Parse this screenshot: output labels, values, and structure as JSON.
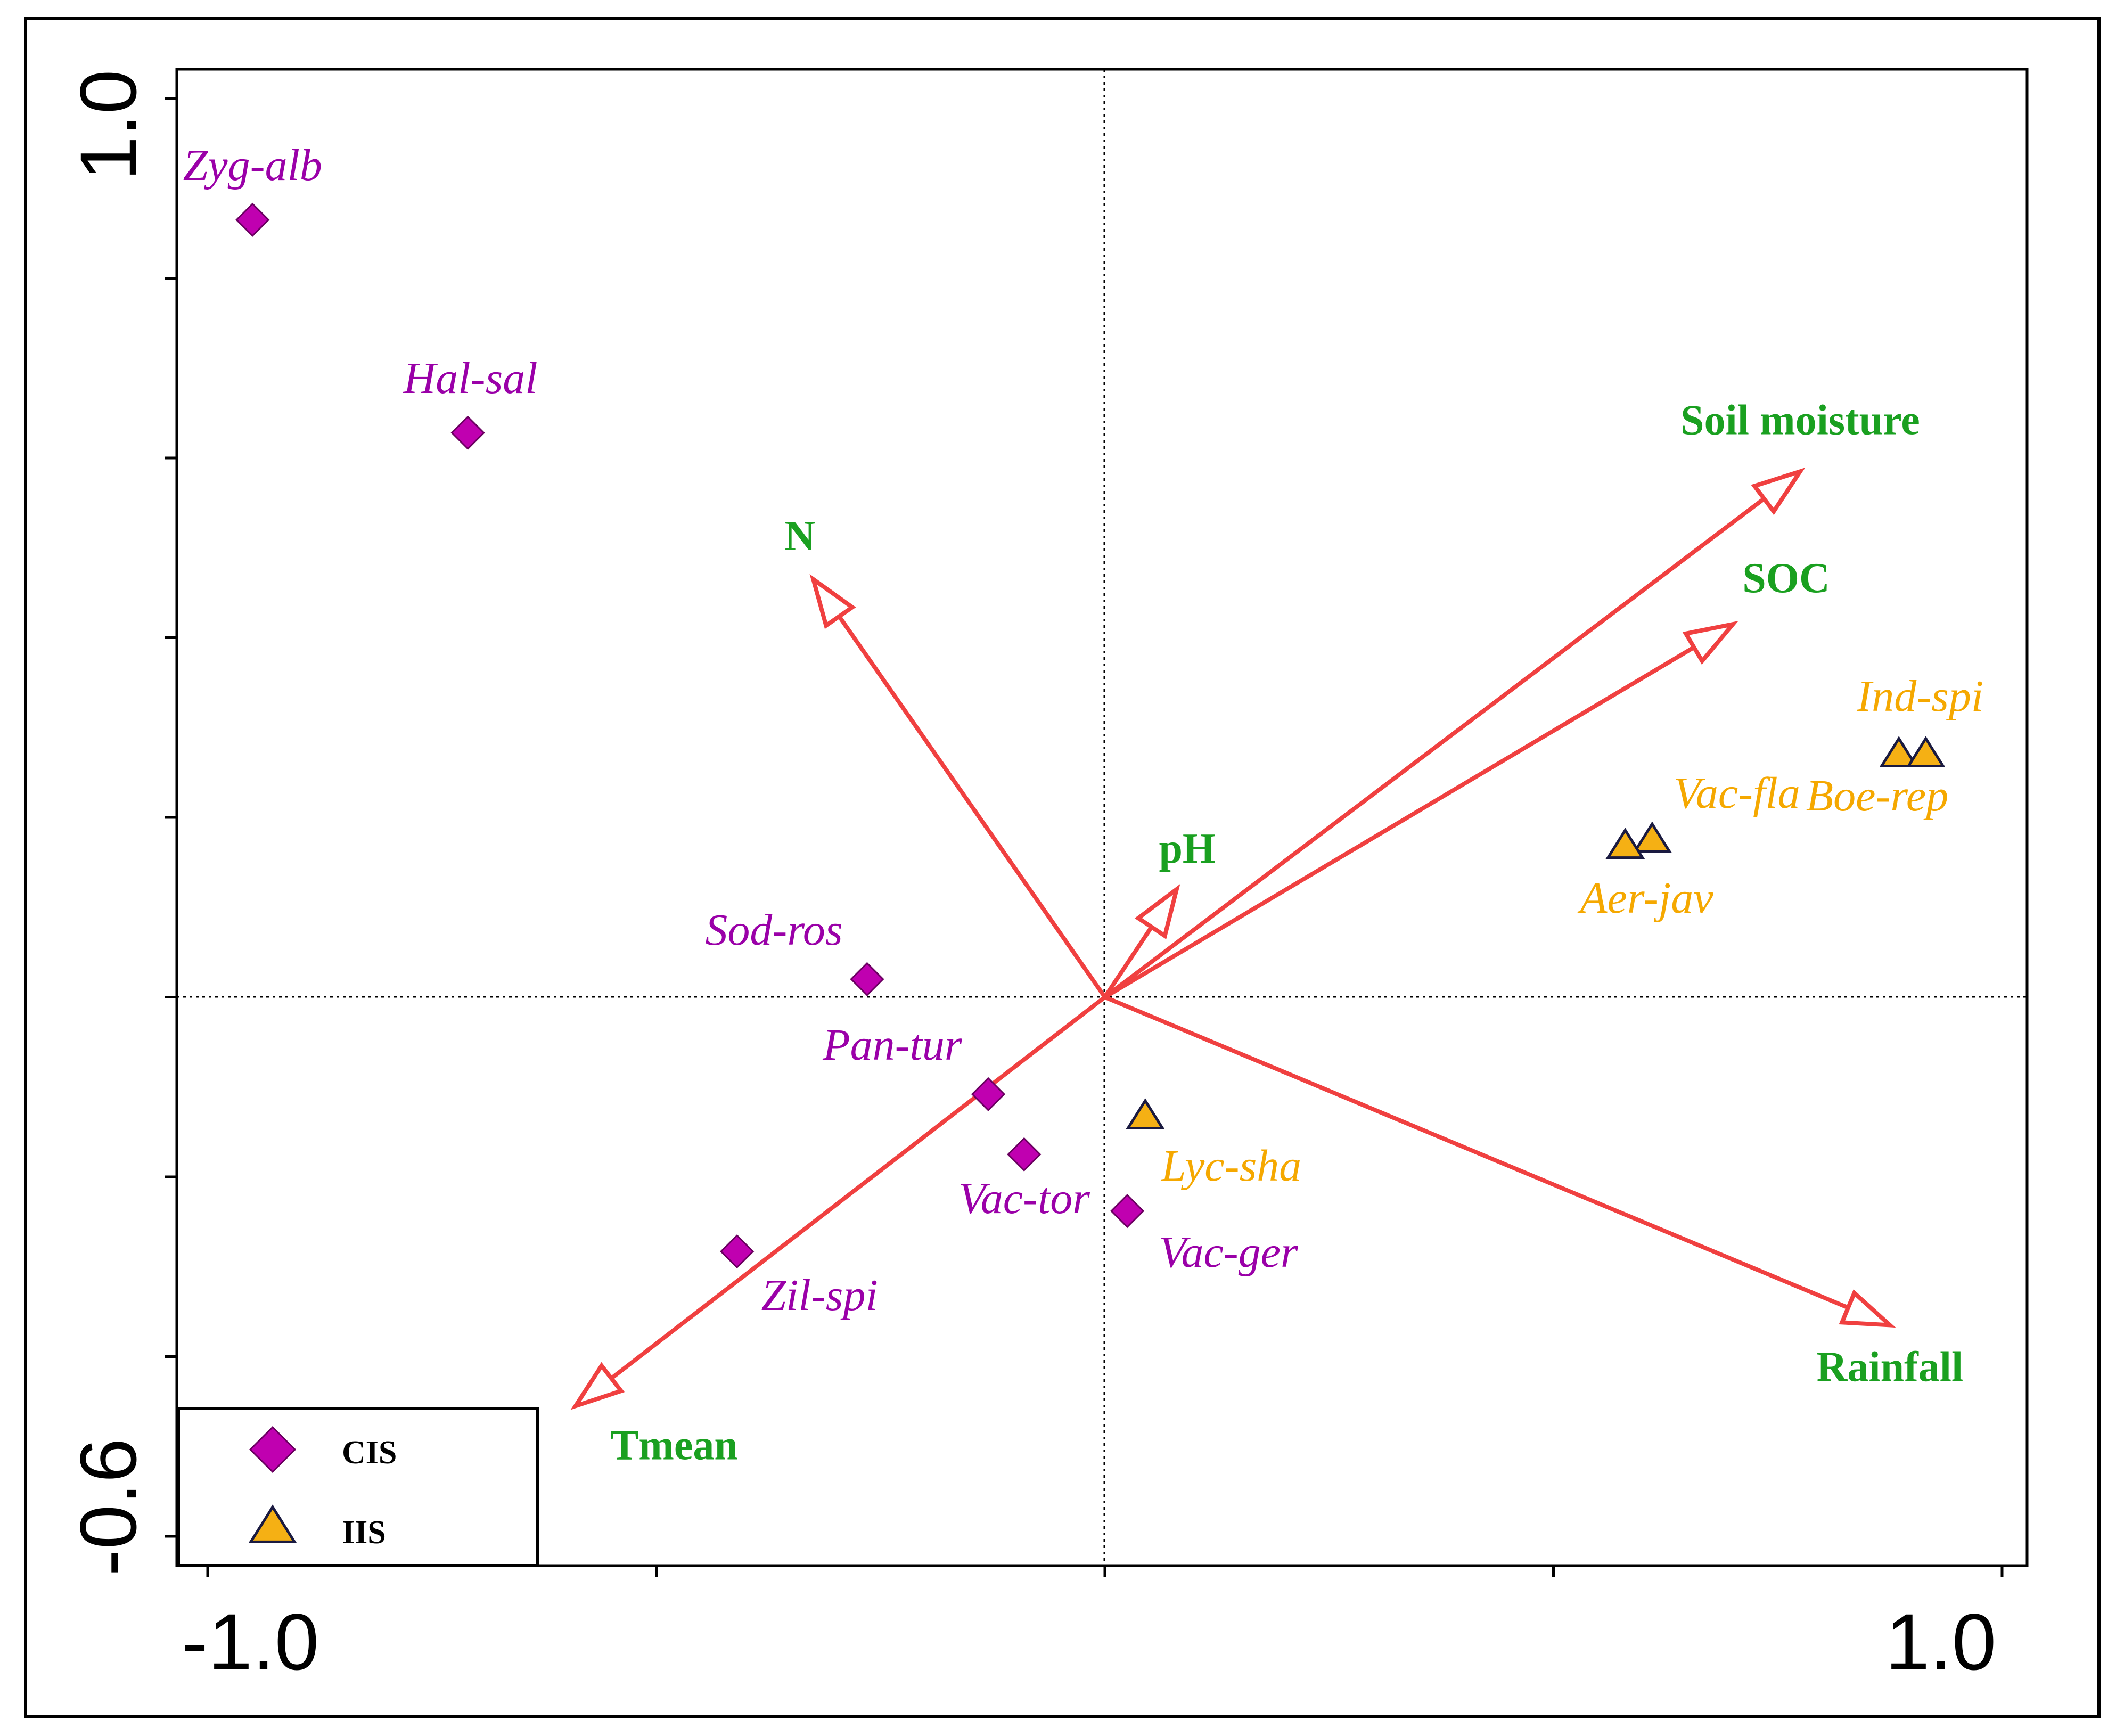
{
  "chart_data": {
    "type": "scatter",
    "subtype": "ordination biplot",
    "x_range": [
      -1.0,
      1.0
    ],
    "y_range": [
      -0.6,
      1.0
    ],
    "x_tick_labels": [
      "-1.0",
      "1.0"
    ],
    "y_tick_labels": [
      "-0.6",
      "1.0"
    ],
    "colors": {
      "CIS": "#c000b0",
      "CIS_label": "#9a00a8",
      "IIS": "#f5b014",
      "IIS_label": "#f5a800",
      "env_arrow": "#f04040",
      "env_label": "#1aa020"
    },
    "series": [
      {
        "name": "CIS",
        "marker": "diamond",
        "points": [
          {
            "label": "Zyg-alb",
            "x": -0.95,
            "y": 0.865
          },
          {
            "label": "Hal-sal",
            "x": -0.71,
            "y": 0.628
          },
          {
            "label": "Sod-ros",
            "x": -0.265,
            "y": 0.02
          },
          {
            "label": "Pan-tur",
            "x": -0.13,
            "y": -0.108
          },
          {
            "label": "Vac-tor",
            "x": -0.09,
            "y": -0.175
          },
          {
            "label": "Vac-ger",
            "x": 0.025,
            "y": -0.238
          },
          {
            "label": "Zil-spi",
            "x": -0.41,
            "y": -0.283
          }
        ]
      },
      {
        "name": "IIS",
        "marker": "triangle",
        "points": [
          {
            "label": "Ind-spi",
            "x": 0.885,
            "y": 0.27
          },
          {
            "label": "Boe-rep",
            "x": 0.915,
            "y": 0.27
          },
          {
            "label": "Vac-fla",
            "x": 0.61,
            "y": 0.175
          },
          {
            "label": "Aer-jav",
            "x": 0.58,
            "y": 0.168
          },
          {
            "label": "Lyc-sha",
            "x": 0.045,
            "y": -0.133
          }
        ]
      }
    ],
    "environmental_vectors": [
      {
        "label": "Soil moisture",
        "x": 0.775,
        "y": 0.585
      },
      {
        "label": "SOC",
        "x": 0.7,
        "y": 0.415
      },
      {
        "label": "N",
        "x": -0.325,
        "y": 0.465
      },
      {
        "label": "pH",
        "x": 0.08,
        "y": 0.12
      },
      {
        "label": "Rainfall",
        "x": 0.875,
        "y": -0.365
      },
      {
        "label": "Tmean",
        "x": -0.59,
        "y": -0.455
      }
    ],
    "legend": {
      "position": "bottom-left",
      "entries": [
        {
          "label": "CIS",
          "marker": "diamond"
        },
        {
          "label": "IIS",
          "marker": "triangle"
        }
      ]
    }
  }
}
